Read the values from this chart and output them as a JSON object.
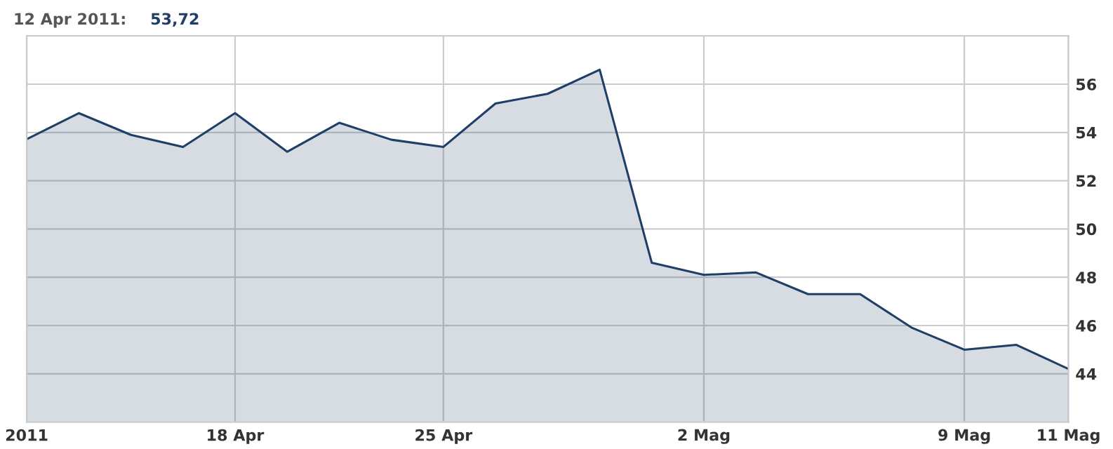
{
  "chart_data": {
    "type": "area",
    "title": "12 Apr 2011:",
    "annotations": [
      "53,72"
    ],
    "categories": [
      "2011",
      null,
      null,
      null,
      "18 Apr",
      null,
      null,
      null,
      "25 Apr",
      null,
      null,
      null,
      null,
      "2 Mag",
      null,
      null,
      null,
      null,
      "9 Mag",
      null,
      "11 Mag"
    ],
    "series": [
      {
        "color": "#1f3f66",
        "values": [
          53.72,
          54.8,
          53.9,
          53.4,
          54.8,
          53.2,
          54.4,
          53.7,
          53.4,
          55.2,
          55.6,
          56.6,
          48.6,
          48.1,
          48.2,
          47.3,
          47.3,
          45.9,
          45.0,
          45.2,
          44.2
        ]
      }
    ],
    "ylim": [
      42,
      58
    ],
    "yticks": [
      44,
      46,
      48,
      50,
      52,
      54,
      56
    ],
    "grid": true,
    "legend": false
  }
}
